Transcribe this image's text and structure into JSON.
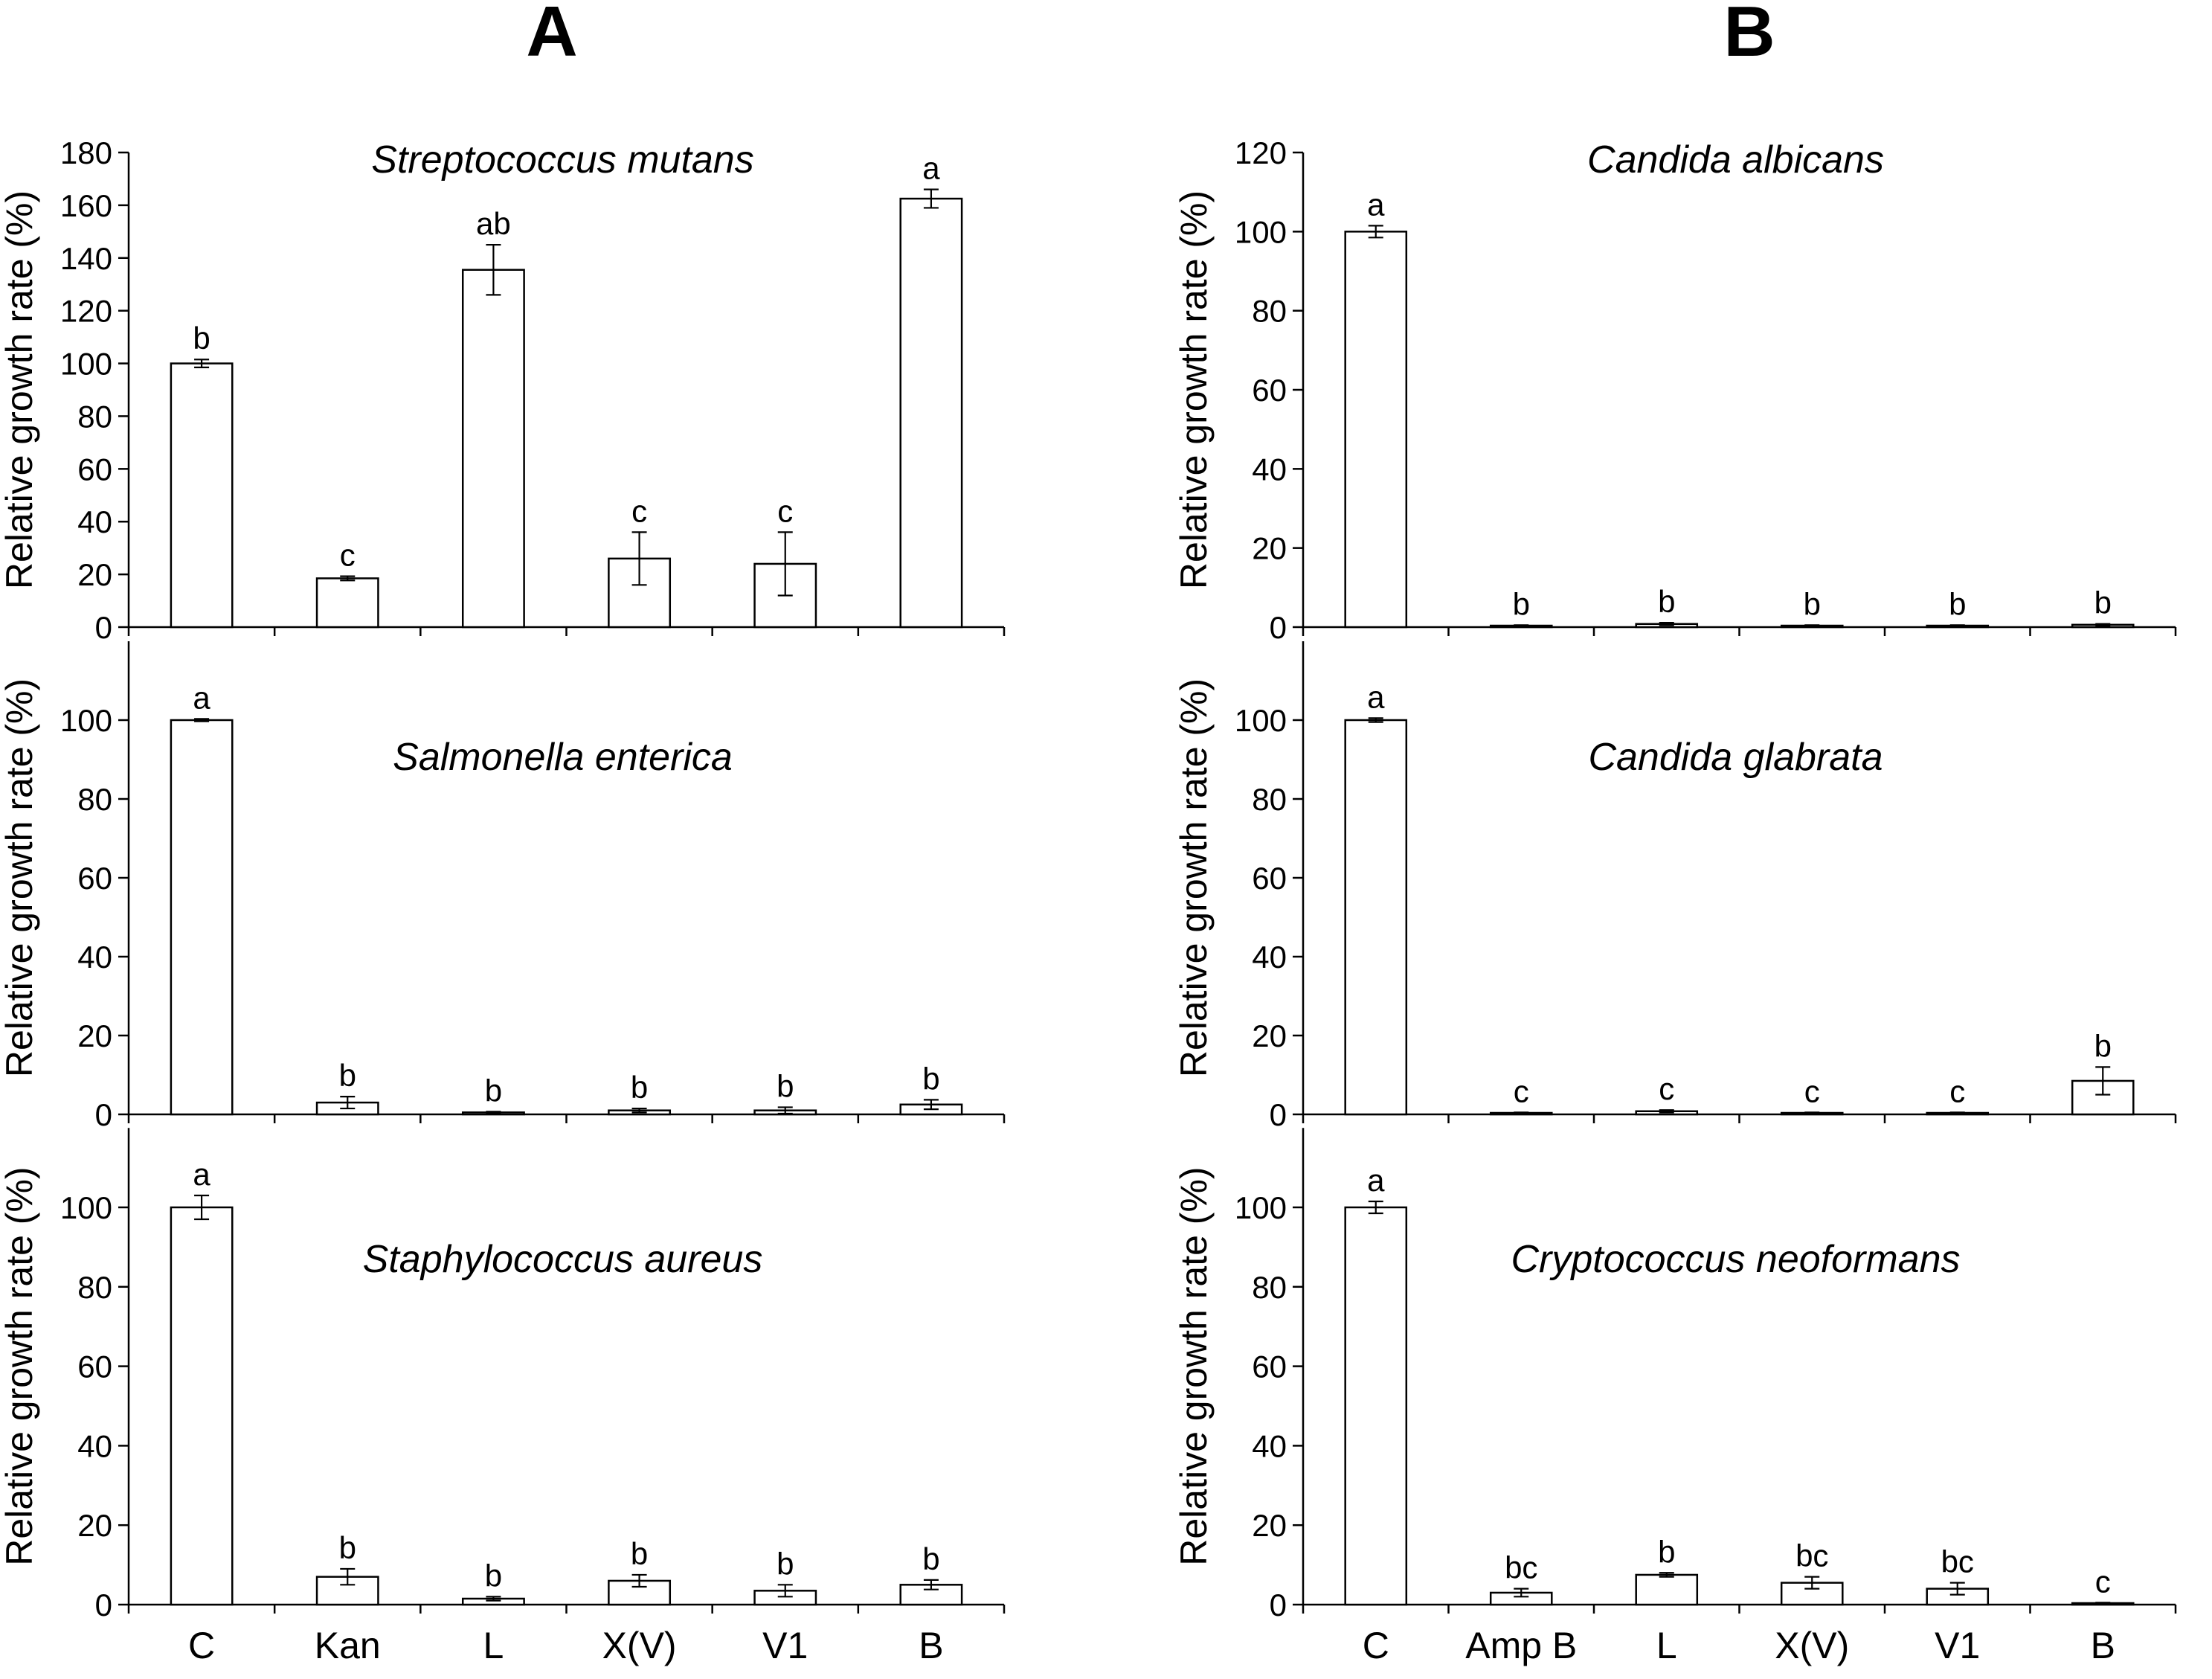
{
  "panel_labels": [
    "A",
    "B"
  ],
  "chart_data": [
    {
      "type": "bar",
      "column": "A",
      "row": 0,
      "title": "Streptococcus mutans",
      "ylabel": "Relative growth rate (%)",
      "xlabel": "",
      "categories": [
        "C",
        "Kan",
        "L",
        "X(V)",
        "V1",
        "B"
      ],
      "values": [
        100,
        18.5,
        135.5,
        26,
        24,
        162.5
      ],
      "errors": [
        1.5,
        0.8,
        9.5,
        10,
        12,
        3.5
      ],
      "significance": [
        "b",
        "c",
        "ab",
        "c",
        "c",
        "a"
      ],
      "ylim": [
        0,
        180
      ],
      "yticks": [
        0,
        20,
        40,
        60,
        80,
        100,
        120,
        140,
        160,
        180
      ],
      "show_xlabels": false
    },
    {
      "type": "bar",
      "column": "A",
      "row": 1,
      "title": "Salmonella enterica",
      "ylabel": "Relative growth rate (%)",
      "xlabel": "",
      "categories": [
        "C",
        "Kan",
        "L",
        "X(V)",
        "V1",
        "B"
      ],
      "values": [
        100,
        3,
        0.5,
        1,
        1,
        2.5
      ],
      "errors": [
        0.3,
        1.5,
        0.2,
        0.5,
        0.8,
        1.2
      ],
      "significance": [
        "a",
        "b",
        "b",
        "b",
        "b",
        "b"
      ],
      "ylim": [
        0,
        120
      ],
      "yticks": [
        0,
        20,
        40,
        60,
        80,
        100
      ],
      "show_xlabels": false
    },
    {
      "type": "bar",
      "column": "A",
      "row": 2,
      "title": "Staphylococcus aureus",
      "ylabel": "Relative growth rate (%)",
      "xlabel": "",
      "categories": [
        "C",
        "Kan",
        "L",
        "X(V)",
        "V1",
        "B"
      ],
      "values": [
        100,
        7,
        1.5,
        6,
        3.5,
        5
      ],
      "errors": [
        3,
        2,
        0.5,
        1.5,
        1.5,
        1.2
      ],
      "significance": [
        "a",
        "b",
        "b",
        "b",
        "b",
        "b"
      ],
      "ylim": [
        0,
        120
      ],
      "yticks": [
        0,
        20,
        40,
        60,
        80,
        100
      ],
      "show_xlabels": true
    },
    {
      "type": "bar",
      "column": "B",
      "row": 0,
      "title": "Candida albicans",
      "ylabel": "Relative growth rate (%)",
      "xlabel": "",
      "categories": [
        "C",
        "Amp B",
        "L",
        "X(V)",
        "V1",
        "B"
      ],
      "values": [
        100,
        0.3,
        0.8,
        0.3,
        0.3,
        0.6
      ],
      "errors": [
        1.5,
        0.2,
        0.3,
        0.2,
        0.2,
        0.2
      ],
      "significance": [
        "a",
        "b",
        "b",
        "b",
        "b",
        "b"
      ],
      "ylim": [
        0,
        120
      ],
      "yticks": [
        0,
        20,
        40,
        60,
        80,
        100,
        120
      ],
      "show_xlabels": false
    },
    {
      "type": "bar",
      "column": "B",
      "row": 1,
      "title": "Candida glabrata",
      "ylabel": "Relative growth rate (%)",
      "xlabel": "",
      "categories": [
        "C",
        "Amp B",
        "L",
        "X(V)",
        "V1",
        "B"
      ],
      "values": [
        100,
        0.3,
        0.8,
        0.3,
        0.3,
        8.5
      ],
      "errors": [
        0.5,
        0.2,
        0.3,
        0.2,
        0.2,
        3.5
      ],
      "significance": [
        "a",
        "c",
        "c",
        "c",
        "c",
        "b"
      ],
      "ylim": [
        0,
        120
      ],
      "yticks": [
        0,
        20,
        40,
        60,
        80,
        100
      ],
      "show_xlabels": false
    },
    {
      "type": "bar",
      "column": "B",
      "row": 2,
      "title": "Cryptococcus neoformans",
      "ylabel": "Relative growth rate (%)",
      "xlabel": "",
      "categories": [
        "C",
        "Amp B",
        "L",
        "X(V)",
        "V1",
        "B"
      ],
      "values": [
        100,
        3,
        7.5,
        5.5,
        4,
        0.3
      ],
      "errors": [
        1.5,
        1,
        0.5,
        1.5,
        1.5,
        0.2
      ],
      "significance": [
        "a",
        "bc",
        "b",
        "bc",
        "bc",
        "c"
      ],
      "ylim": [
        0,
        120
      ],
      "yticks": [
        0,
        20,
        40,
        60,
        80,
        100
      ],
      "show_xlabels": true
    }
  ]
}
